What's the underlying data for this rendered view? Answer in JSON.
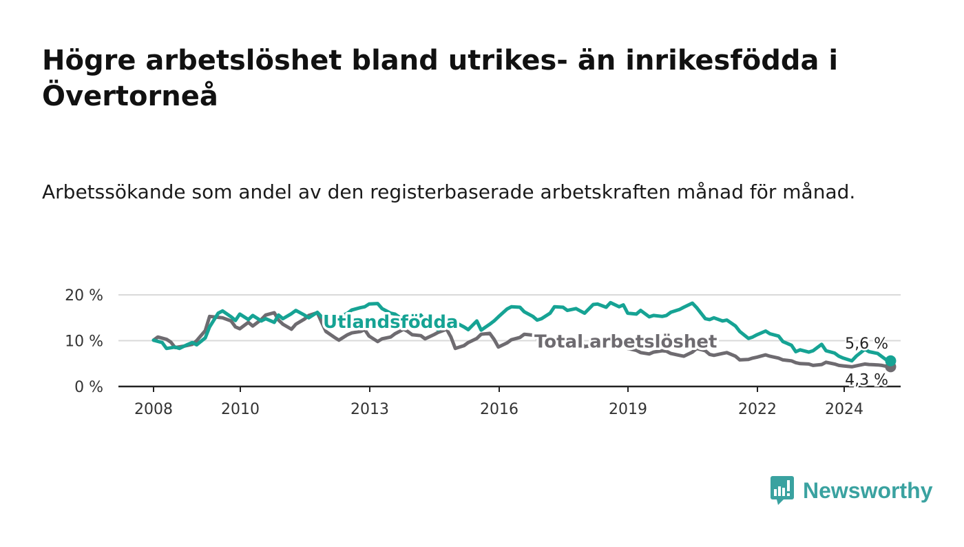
{
  "title": "Högre arbetslöshet bland utrikes- än inrikesfödda i Övertorneå",
  "subtitle": "Arbetssökande som andel av den registerbaserade arbetskraften månad för månad.",
  "brand": {
    "name": "Newsworthy",
    "color": "#3aa2a0"
  },
  "chart_data": {
    "type": "line",
    "x_ticks": [
      "2008",
      "2010",
      "2013",
      "2016",
      "2019",
      "2022",
      "2024"
    ],
    "y_ticks": [
      "0 %",
      "10 %",
      "20 %"
    ],
    "ylim": [
      0,
      25
    ],
    "xlim": [
      2007.2,
      2025.3
    ],
    "grid": true,
    "legend": "inline labels",
    "series": [
      {
        "name": "Utlandsfödda",
        "color": "#16a394",
        "end_label": "5,6 %",
        "points": [
          [
            2008.0,
            10.1
          ],
          [
            2008.2,
            9.6
          ],
          [
            2008.3,
            8.3
          ],
          [
            2008.5,
            8.6
          ],
          [
            2008.6,
            8.3
          ],
          [
            2008.8,
            9.2
          ],
          [
            2008.9,
            9.6
          ],
          [
            2009.0,
            9.1
          ],
          [
            2009.2,
            10.6
          ],
          [
            2009.3,
            13.0
          ],
          [
            2009.5,
            16.0
          ],
          [
            2009.6,
            16.5
          ],
          [
            2009.8,
            15.2
          ],
          [
            2009.9,
            14.4
          ],
          [
            2010.0,
            15.8
          ],
          [
            2010.2,
            14.6
          ],
          [
            2010.3,
            15.5
          ],
          [
            2010.5,
            14.3
          ],
          [
            2010.6,
            14.8
          ],
          [
            2010.8,
            14.0
          ],
          [
            2010.9,
            15.6
          ],
          [
            2011.0,
            14.8
          ],
          [
            2011.2,
            15.9
          ],
          [
            2011.3,
            16.6
          ],
          [
            2011.5,
            15.6
          ],
          [
            2011.6,
            15.0
          ],
          [
            2011.8,
            16.2
          ],
          [
            2011.9,
            15.2
          ],
          [
            2012.0,
            14.6
          ],
          [
            2012.2,
            14.2
          ],
          [
            2012.3,
            15.1
          ],
          [
            2012.5,
            16.0
          ],
          [
            2012.6,
            16.7
          ],
          [
            2012.8,
            17.2
          ],
          [
            2012.9,
            17.4
          ],
          [
            2013.0,
            18.0
          ],
          [
            2013.2,
            18.1
          ],
          [
            2013.3,
            17.0
          ],
          [
            2013.5,
            16.0
          ],
          [
            2013.6,
            15.8
          ],
          [
            2013.8,
            14.5
          ],
          [
            2013.9,
            13.2
          ],
          [
            2014.0,
            13.9
          ],
          [
            2014.2,
            15.6
          ],
          [
            2014.3,
            14.3
          ],
          [
            2014.5,
            13.1
          ],
          [
            2014.6,
            12.4
          ],
          [
            2014.8,
            13.2
          ],
          [
            2014.9,
            14.8
          ],
          [
            2015.0,
            14.0
          ],
          [
            2015.2,
            13.0
          ],
          [
            2015.3,
            12.4
          ],
          [
            2015.5,
            14.3
          ],
          [
            2015.6,
            12.3
          ],
          [
            2015.8,
            13.6
          ],
          [
            2015.9,
            14.3
          ],
          [
            2016.0,
            15.2
          ],
          [
            2016.2,
            16.9
          ],
          [
            2016.3,
            17.4
          ],
          [
            2016.5,
            17.3
          ],
          [
            2016.6,
            16.3
          ],
          [
            2016.8,
            15.3
          ],
          [
            2016.9,
            14.5
          ],
          [
            2017.0,
            14.8
          ],
          [
            2017.2,
            16.0
          ],
          [
            2017.3,
            17.4
          ],
          [
            2017.5,
            17.3
          ],
          [
            2017.6,
            16.6
          ],
          [
            2017.8,
            17.0
          ],
          [
            2017.9,
            16.5
          ],
          [
            2018.0,
            16.0
          ],
          [
            2018.2,
            17.9
          ],
          [
            2018.3,
            18.0
          ],
          [
            2018.5,
            17.3
          ],
          [
            2018.6,
            18.3
          ],
          [
            2018.8,
            17.4
          ],
          [
            2018.9,
            17.8
          ],
          [
            2019.0,
            16.0
          ],
          [
            2019.2,
            15.8
          ],
          [
            2019.3,
            16.6
          ],
          [
            2019.5,
            15.2
          ],
          [
            2019.6,
            15.5
          ],
          [
            2019.8,
            15.3
          ],
          [
            2019.9,
            15.5
          ],
          [
            2020.0,
            16.2
          ],
          [
            2020.2,
            16.8
          ],
          [
            2020.3,
            17.3
          ],
          [
            2020.5,
            18.2
          ],
          [
            2020.6,
            17.2
          ],
          [
            2020.8,
            14.8
          ],
          [
            2020.9,
            14.6
          ],
          [
            2021.0,
            15.0
          ],
          [
            2021.2,
            14.3
          ],
          [
            2021.3,
            14.5
          ],
          [
            2021.5,
            13.2
          ],
          [
            2021.6,
            12.0
          ],
          [
            2021.8,
            10.5
          ],
          [
            2021.9,
            10.8
          ],
          [
            2022.0,
            11.3
          ],
          [
            2022.2,
            12.1
          ],
          [
            2022.3,
            11.5
          ],
          [
            2022.5,
            11.0
          ],
          [
            2022.6,
            9.8
          ],
          [
            2022.8,
            9.0
          ],
          [
            2022.9,
            7.6
          ],
          [
            2023.0,
            8.0
          ],
          [
            2023.2,
            7.5
          ],
          [
            2023.3,
            7.8
          ],
          [
            2023.5,
            9.2
          ],
          [
            2023.6,
            7.8
          ],
          [
            2023.8,
            7.3
          ],
          [
            2023.9,
            6.6
          ],
          [
            2024.0,
            6.2
          ],
          [
            2024.2,
            5.6
          ],
          [
            2024.3,
            6.6
          ],
          [
            2024.5,
            8.1
          ],
          [
            2024.6,
            7.6
          ],
          [
            2024.8,
            7.2
          ],
          [
            2024.9,
            6.5
          ],
          [
            2025.0,
            5.8
          ],
          [
            2025.1,
            5.6
          ]
        ]
      },
      {
        "name": "Total arbetslöshet",
        "color": "#6e6b70",
        "end_label": "4,3 %",
        "points": [
          [
            2008.0,
            10.1
          ],
          [
            2008.1,
            10.8
          ],
          [
            2008.3,
            10.3
          ],
          [
            2008.4,
            9.7
          ],
          [
            2008.5,
            8.5
          ],
          [
            2008.7,
            8.8
          ],
          [
            2008.9,
            9.2
          ],
          [
            2009.0,
            10.0
          ],
          [
            2009.2,
            12.2
          ],
          [
            2009.3,
            15.3
          ],
          [
            2009.5,
            15.1
          ],
          [
            2009.6,
            15.0
          ],
          [
            2009.8,
            14.3
          ],
          [
            2009.9,
            13.0
          ],
          [
            2010.0,
            12.6
          ],
          [
            2010.2,
            14.0
          ],
          [
            2010.3,
            13.2
          ],
          [
            2010.5,
            14.6
          ],
          [
            2010.6,
            15.6
          ],
          [
            2010.8,
            16.1
          ],
          [
            2010.9,
            14.5
          ],
          [
            2011.0,
            13.6
          ],
          [
            2011.2,
            12.5
          ],
          [
            2011.3,
            13.6
          ],
          [
            2011.5,
            14.7
          ],
          [
            2011.6,
            15.5
          ],
          [
            2011.8,
            16.1
          ],
          [
            2011.9,
            14.0
          ],
          [
            2012.0,
            12.0
          ],
          [
            2012.2,
            10.7
          ],
          [
            2012.3,
            10.1
          ],
          [
            2012.5,
            11.3
          ],
          [
            2012.6,
            11.7
          ],
          [
            2012.8,
            12.0
          ],
          [
            2012.9,
            12.4
          ],
          [
            2013.0,
            11.0
          ],
          [
            2013.2,
            9.8
          ],
          [
            2013.3,
            10.4
          ],
          [
            2013.5,
            10.8
          ],
          [
            2013.6,
            11.5
          ],
          [
            2013.8,
            12.5
          ],
          [
            2013.9,
            12.0
          ],
          [
            2014.0,
            11.3
          ],
          [
            2014.2,
            11.1
          ],
          [
            2014.3,
            10.4
          ],
          [
            2014.5,
            11.3
          ],
          [
            2014.6,
            11.8
          ],
          [
            2014.8,
            12.5
          ],
          [
            2014.9,
            10.8
          ],
          [
            2015.0,
            8.3
          ],
          [
            2015.2,
            8.9
          ],
          [
            2015.3,
            9.6
          ],
          [
            2015.5,
            10.5
          ],
          [
            2015.6,
            11.4
          ],
          [
            2015.8,
            11.6
          ],
          [
            2015.9,
            10.3
          ],
          [
            2016.0,
            8.6
          ],
          [
            2016.2,
            9.5
          ],
          [
            2016.3,
            10.2
          ],
          [
            2016.5,
            10.7
          ],
          [
            2016.6,
            11.4
          ],
          [
            2016.8,
            11.2
          ],
          [
            2016.9,
            10.5
          ],
          [
            2017.0,
            8.8
          ],
          [
            2017.2,
            9.7
          ],
          [
            2017.3,
            10.4
          ],
          [
            2017.5,
            10.5
          ],
          [
            2017.6,
            10.3
          ],
          [
            2017.8,
            10.0
          ],
          [
            2017.9,
            9.5
          ],
          [
            2018.0,
            8.7
          ],
          [
            2018.2,
            9.0
          ],
          [
            2018.3,
            9.3
          ],
          [
            2018.5,
            10.4
          ],
          [
            2018.6,
            10.2
          ],
          [
            2018.8,
            9.7
          ],
          [
            2018.9,
            9.4
          ],
          [
            2019.0,
            8.3
          ],
          [
            2019.2,
            7.9
          ],
          [
            2019.3,
            7.4
          ],
          [
            2019.5,
            7.1
          ],
          [
            2019.6,
            7.5
          ],
          [
            2019.8,
            7.8
          ],
          [
            2019.9,
            7.7
          ],
          [
            2020.0,
            7.2
          ],
          [
            2020.2,
            6.8
          ],
          [
            2020.3,
            6.6
          ],
          [
            2020.5,
            7.5
          ],
          [
            2020.6,
            8.3
          ],
          [
            2020.8,
            7.8
          ],
          [
            2020.9,
            7.0
          ],
          [
            2021.0,
            6.8
          ],
          [
            2021.2,
            7.2
          ],
          [
            2021.3,
            7.4
          ],
          [
            2021.5,
            6.6
          ],
          [
            2021.6,
            5.8
          ],
          [
            2021.8,
            5.9
          ],
          [
            2021.9,
            6.2
          ],
          [
            2022.0,
            6.4
          ],
          [
            2022.2,
            6.9
          ],
          [
            2022.3,
            6.6
          ],
          [
            2022.5,
            6.2
          ],
          [
            2022.6,
            5.8
          ],
          [
            2022.8,
            5.6
          ],
          [
            2022.9,
            5.2
          ],
          [
            2023.0,
            5.0
          ],
          [
            2023.2,
            4.9
          ],
          [
            2023.3,
            4.6
          ],
          [
            2023.5,
            4.8
          ],
          [
            2023.6,
            5.3
          ],
          [
            2023.8,
            4.9
          ],
          [
            2023.9,
            4.6
          ],
          [
            2024.0,
            4.5
          ],
          [
            2024.2,
            4.3
          ],
          [
            2024.3,
            4.5
          ],
          [
            2024.5,
            4.9
          ],
          [
            2024.6,
            4.8
          ],
          [
            2024.8,
            4.7
          ],
          [
            2024.9,
            4.6
          ],
          [
            2025.0,
            4.4
          ],
          [
            2025.1,
            4.3
          ]
        ]
      }
    ]
  }
}
